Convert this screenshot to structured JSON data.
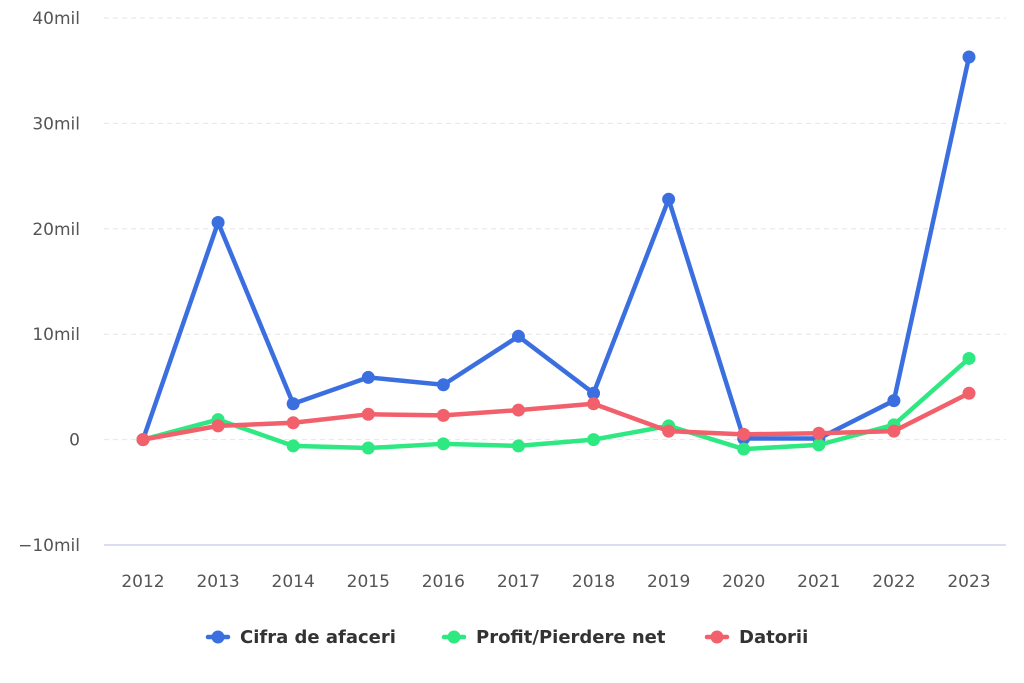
{
  "chart_data": {
    "type": "line",
    "title": "",
    "xlabel": "",
    "ylabel": "",
    "x": [
      "2012",
      "2013",
      "2014",
      "2015",
      "2016",
      "2017",
      "2018",
      "2019",
      "2020",
      "2021",
      "2022",
      "2023"
    ],
    "ylim": [
      -10,
      40
    ],
    "yticks": [
      -10,
      0,
      10,
      20,
      30,
      40
    ],
    "ytick_labels": [
      "−10mil",
      "0",
      "10mil",
      "20mil",
      "30mil",
      "40mil"
    ],
    "grid": true,
    "legend_position": "bottom-center",
    "series": [
      {
        "name": "Cifra de afaceri",
        "color": "#3b6fe0",
        "values": [
          0.0,
          20.6,
          3.4,
          5.9,
          5.2,
          9.8,
          4.4,
          22.8,
          0.1,
          0.1,
          3.7,
          36.3
        ]
      },
      {
        "name": "Profit/Pierdere net",
        "color": "#2ee882",
        "values": [
          0.0,
          1.9,
          -0.6,
          -0.8,
          -0.4,
          -0.6,
          0.0,
          1.3,
          -0.9,
          -0.5,
          1.4,
          7.7
        ]
      },
      {
        "name": "Datorii",
        "color": "#f1606b",
        "values": [
          0.0,
          1.3,
          1.6,
          2.4,
          2.3,
          2.8,
          3.4,
          0.8,
          0.5,
          0.6,
          0.8,
          4.4
        ]
      }
    ]
  }
}
